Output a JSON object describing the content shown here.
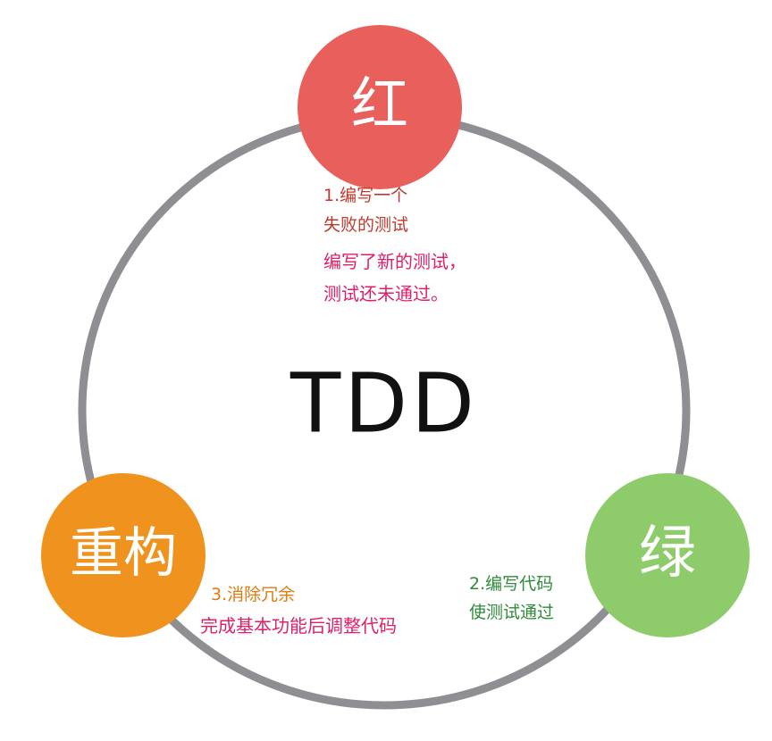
{
  "center": {
    "label": "TDD"
  },
  "nodes": {
    "red": {
      "label": "红",
      "color": "#E85F5C",
      "step": "1.编写一个",
      "step_line2": "失败的测试",
      "desc_line1": "编写了新的测试，",
      "desc_line2": "测试还未通过。",
      "step_color": "#C0392B",
      "desc_color": "#E01F6B"
    },
    "green": {
      "label": "绿",
      "color": "#8DCB6B",
      "step": "2.编写代码",
      "step_line2": "使测试通过",
      "step_color": "#2E8B3A"
    },
    "refactor": {
      "label": "重构",
      "color": "#F0931E",
      "step": "3.消除冗余",
      "desc_line1": "完成基本功能后调整代码",
      "step_color": "#E07B12",
      "desc_color": "#E01F6B"
    }
  },
  "ring_color": "#8E8E93"
}
